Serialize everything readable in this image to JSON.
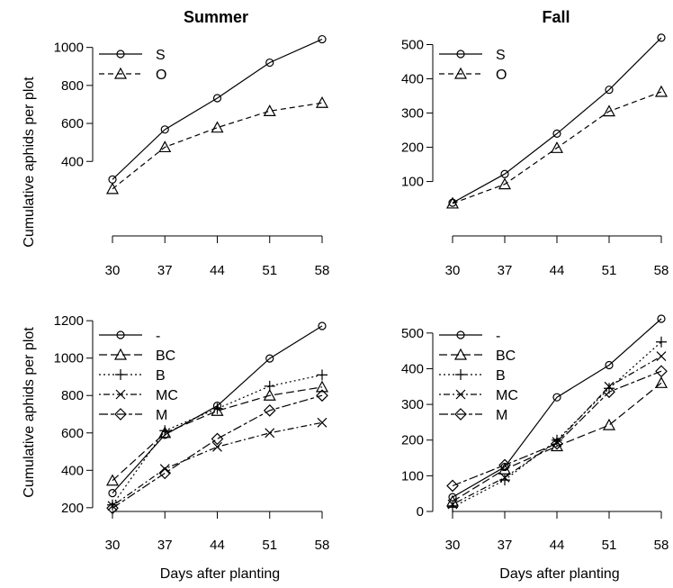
{
  "shared_xlabel": "Days after planting",
  "shared_ylabel": "Cumulative aphids per plot",
  "chart_data": [
    {
      "id": "summer-top",
      "type": "line",
      "title": "Summer",
      "xlabel": "",
      "ylabel": "Cumulative aphids per plot",
      "x": [
        30,
        37,
        44,
        51,
        58
      ],
      "xlim": [
        30,
        58
      ],
      "ylim": [
        150,
        1060
      ],
      "yticks": [
        400,
        600,
        800,
        1000
      ],
      "legend": "top-left",
      "series": [
        {
          "name": "S",
          "marker": "circle",
          "dash": "solid",
          "values": [
            305,
            568,
            733,
            920,
            1043
          ]
        },
        {
          "name": "O",
          "marker": "triangle",
          "dash": "dashed",
          "values": [
            255,
            475,
            578,
            665,
            708
          ]
        }
      ]
    },
    {
      "id": "fall-top",
      "type": "line",
      "title": "Fall",
      "xlabel": "",
      "ylabel": "",
      "x": [
        30,
        37,
        44,
        51,
        58
      ],
      "xlim": [
        30,
        58
      ],
      "ylim": [
        20,
        525
      ],
      "yticks": [
        100,
        200,
        300,
        400,
        500
      ],
      "legend": "top-left",
      "series": [
        {
          "name": "S",
          "marker": "circle",
          "dash": "solid",
          "values": [
            38,
            122,
            240,
            368,
            520
          ]
        },
        {
          "name": "O",
          "marker": "triangle",
          "dash": "dashed",
          "values": [
            36,
            92,
            198,
            305,
            362
          ]
        }
      ]
    },
    {
      "id": "summer-bottom",
      "type": "line",
      "title": "",
      "xlabel": "Days after planting",
      "ylabel": "Cumulative aphids per plot",
      "x": [
        30,
        37,
        44,
        51,
        58
      ],
      "xlim": [
        30,
        58
      ],
      "ylim": [
        180,
        1220
      ],
      "yticks": [
        200,
        400,
        600,
        800,
        1000,
        1200
      ],
      "legend": "top-left",
      "series": [
        {
          "name": "-",
          "marker": "circle",
          "dash": "solid",
          "values": [
            278,
            590,
            745,
            998,
            1172
          ]
        },
        {
          "name": "BC",
          "marker": "triangle",
          "dash": "longdash",
          "values": [
            345,
            600,
            718,
            800,
            845
          ]
        },
        {
          "name": "B",
          "marker": "plus",
          "dash": "dotted",
          "values": [
            215,
            612,
            730,
            850,
            910
          ]
        },
        {
          "name": "MC",
          "marker": "x",
          "dash": "dotdash",
          "values": [
            210,
            408,
            525,
            600,
            655
          ]
        },
        {
          "name": "M",
          "marker": "diamond",
          "dash": "twodash",
          "values": [
            198,
            385,
            568,
            720,
            800
          ]
        }
      ]
    },
    {
      "id": "fall-bottom",
      "type": "line",
      "title": "",
      "xlabel": "Days after planting",
      "ylabel": "",
      "x": [
        30,
        37,
        44,
        51,
        58
      ],
      "xlim": [
        30,
        58
      ],
      "ylim": [
        0,
        545
      ],
      "yticks": [
        0,
        100,
        200,
        300,
        400,
        500
      ],
      "legend": "top-left",
      "series": [
        {
          "name": "-",
          "marker": "circle",
          "dash": "solid",
          "values": [
            40,
            125,
            320,
            410,
            540
          ]
        },
        {
          "name": "BC",
          "marker": "triangle",
          "dash": "longdash",
          "values": [
            28,
            118,
            183,
            242,
            360
          ]
        },
        {
          "name": "B",
          "marker": "plus",
          "dash": "dotted",
          "values": [
            12,
            88,
            200,
            345,
            475
          ]
        },
        {
          "name": "MC",
          "marker": "x",
          "dash": "dotdash",
          "values": [
            20,
            95,
            195,
            350,
            435
          ]
        },
        {
          "name": "M",
          "marker": "diamond",
          "dash": "twodash",
          "values": [
            72,
            130,
            190,
            335,
            393
          ]
        }
      ]
    }
  ]
}
